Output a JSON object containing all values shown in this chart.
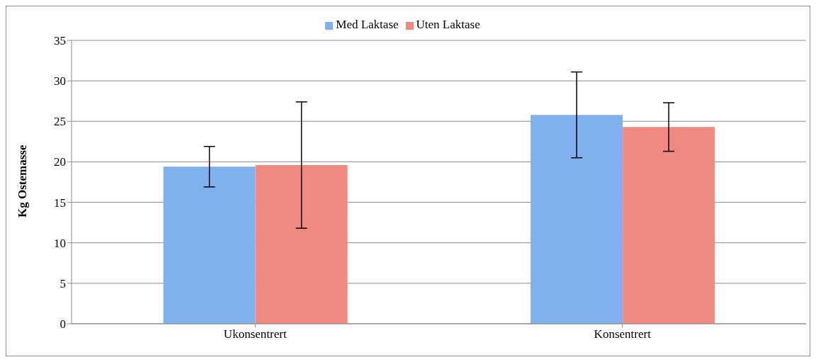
{
  "chart_data": {
    "type": "bar",
    "ylabel": "Kg Ostemasse",
    "categories": [
      "Ukonsentrert",
      "Konsentrert"
    ],
    "series": [
      {
        "name": "Med Laktase",
        "color": "#80b1ee",
        "values": [
          19.4,
          25.8
        ],
        "errors": [
          2.5,
          5.3
        ]
      },
      {
        "name": "Uten Laktase",
        "color": "#f08a80",
        "values": [
          19.6,
          24.3
        ],
        "errors": [
          7.8,
          3.0
        ]
      }
    ],
    "ylim": [
      0,
      35
    ],
    "yticks": [
      0,
      5,
      10,
      15,
      20,
      25,
      30,
      35
    ],
    "grid": "y",
    "legend": "top"
  }
}
